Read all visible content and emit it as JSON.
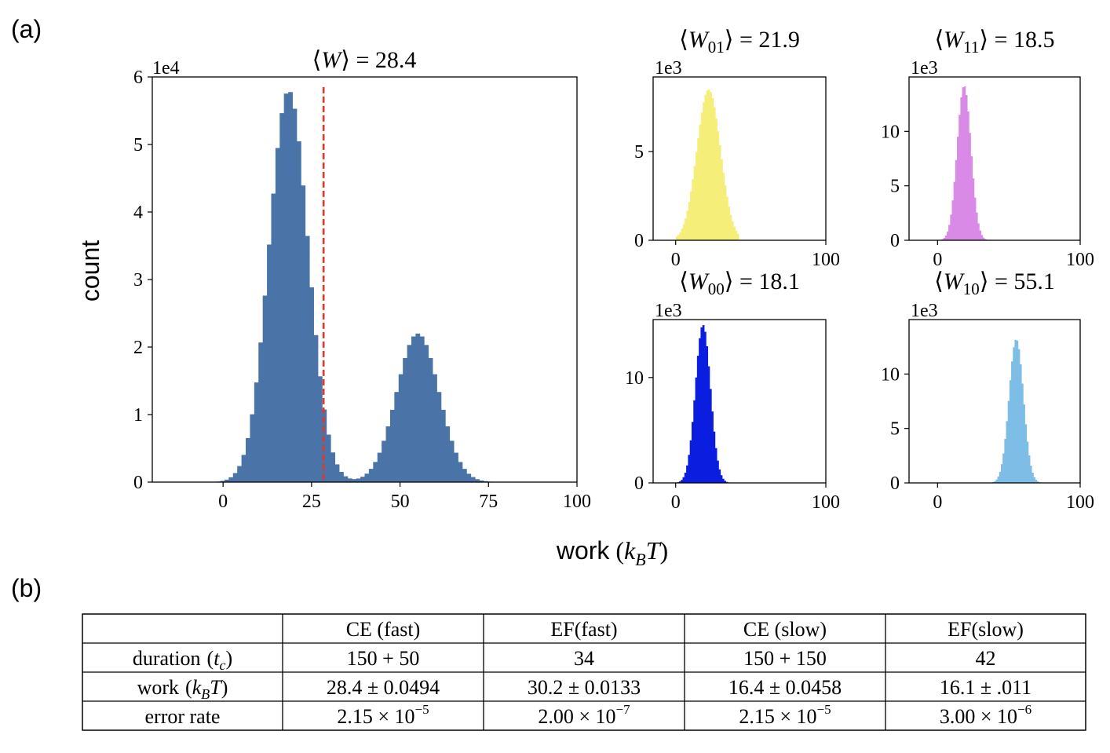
{
  "labels": {
    "panel_a": "(a)",
    "panel_b": "(b)"
  },
  "chart_data": [
    {
      "id": "main",
      "type": "bar",
      "subtype": "histogram",
      "title_mean": "28.4",
      "title_symbol": "W",
      "scale_label": "1e4",
      "ylabel": "count",
      "xlabel": "work",
      "xlabel_unit_main": "k",
      "xlabel_unit_sub": "B",
      "xlabel_unit_T": "T",
      "xlim": [
        -20,
        100
      ],
      "ylim": [
        0,
        6.0
      ],
      "xticks": [
        0,
        25,
        50,
        75,
        100
      ],
      "yticks": [
        0,
        1,
        2,
        3,
        4,
        5,
        6
      ],
      "color": "#4a73a8",
      "mean_line": {
        "x": 28.4,
        "color": "#e0392b",
        "style": "dashed"
      },
      "components": [
        {
          "amp": 5.8,
          "mu": 18.5,
          "sigma": 5.5
        },
        {
          "amp": 2.2,
          "mu": 55.0,
          "sigma": 6.0
        }
      ],
      "bin_width": 1.2,
      "support": [
        -8,
        80
      ]
    },
    {
      "id": "w01",
      "type": "bar",
      "subtype": "histogram",
      "title_symbol": "W",
      "title_sub": "01",
      "title_mean": "21.9",
      "scale_label": "1e3",
      "xlim": [
        -15,
        100
      ],
      "ylim": [
        0,
        9.2
      ],
      "xticks": [
        0,
        100
      ],
      "yticks": [
        0,
        5
      ],
      "color": "#f5ef7a",
      "mu": 21.9,
      "sigma": 7.8,
      "amp": 8.5,
      "support": [
        0,
        42
      ]
    },
    {
      "id": "w11",
      "type": "bar",
      "subtype": "histogram",
      "title_symbol": "W",
      "title_sub": "11",
      "title_mean": "18.5",
      "scale_label": "1e3",
      "xlim": [
        -20,
        100
      ],
      "ylim": [
        0,
        15
      ],
      "xticks": [
        0,
        100
      ],
      "yticks": [
        0,
        5,
        10
      ],
      "color": "#d98ae6",
      "mu": 18.5,
      "sigma": 4.8,
      "amp": 14.2,
      "support": [
        -2,
        40
      ]
    },
    {
      "id": "w00",
      "type": "bar",
      "subtype": "histogram",
      "title_symbol": "W",
      "title_sub": "00",
      "title_mean": "18.1",
      "scale_label": "1e3",
      "xlim": [
        -15,
        100
      ],
      "ylim": [
        0,
        15.5
      ],
      "xticks": [
        0,
        100
      ],
      "yticks": [
        0,
        10
      ],
      "color": "#0b1ee0",
      "mu": 18.1,
      "sigma": 5.0,
      "amp": 15.0,
      "support": [
        -5,
        48
      ]
    },
    {
      "id": "w10",
      "type": "bar",
      "subtype": "histogram",
      "title_symbol": "W",
      "title_sub": "10",
      "title_mean": "55.1",
      "scale_label": "1e3",
      "xlim": [
        -20,
        100
      ],
      "ylim": [
        0,
        15
      ],
      "xticks": [
        0,
        100
      ],
      "yticks": [
        0,
        5,
        10
      ],
      "color": "#7dbde6",
      "mu": 55.1,
      "sigma": 5.0,
      "amp": 13.2,
      "support": [
        30,
        80
      ]
    },
    {
      "id": "table_b",
      "type": "table",
      "columns": [
        "",
        "CE (fast)",
        "EF(fast)",
        "CE (slow)",
        "EF(slow)"
      ],
      "rows": [
        {
          "label": "duration",
          "label_math": "t",
          "label_sub": "c",
          "cells": [
            "150 + 50",
            "34",
            "150 + 150",
            "42"
          ]
        },
        {
          "label": "work",
          "label_math": "k",
          "label_sub": "B",
          "label_tail": "T",
          "cells": [
            "28.4 ± 0.0494",
            "30.2 ± 0.0133",
            "16.4 ± 0.0458",
            "16.1 ± .011"
          ]
        },
        {
          "label": "error rate",
          "cells": [
            {
              "mant": "2.15",
              "exp": "−5"
            },
            {
              "mant": "2.00",
              "exp": "−7"
            },
            {
              "mant": "2.15",
              "exp": "−5"
            },
            {
              "mant": "3.00",
              "exp": "−6"
            }
          ]
        }
      ]
    }
  ]
}
